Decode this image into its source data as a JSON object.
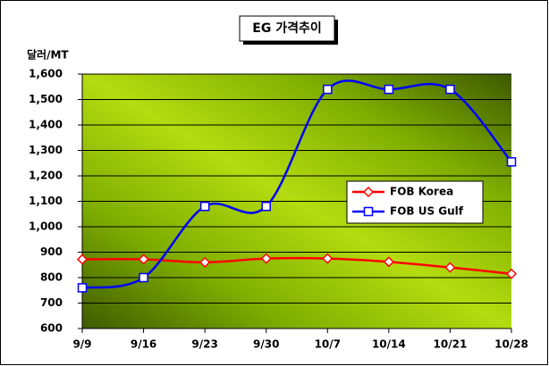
{
  "chart_data": {
    "type": "line",
    "title": "EG 가격추이",
    "y_label": "달러/MT",
    "categories": [
      "9/9",
      "9/16",
      "9/23",
      "9/30",
      "10/7",
      "10/14",
      "10/21",
      "10/28"
    ],
    "series": [
      {
        "name": "FOB Korea",
        "color": "#ff0000",
        "marker": "diamond",
        "values": [
          872,
          872,
          860,
          875,
          875,
          862,
          840,
          815
        ]
      },
      {
        "name": "FOB US Gulf",
        "color": "#0000ff",
        "marker": "square",
        "values": [
          760,
          800,
          1080,
          1080,
          1540,
          1540,
          1540,
          1255
        ]
      }
    ],
    "ylim": [
      600,
      1600
    ],
    "yticks": [
      600,
      700,
      800,
      900,
      {
        "value": 1000,
        "label": "1,000"
      },
      {
        "value": 1100,
        "label": "1,100"
      },
      {
        "value": 1200,
        "label": "1,200"
      },
      {
        "value": 1300,
        "label": "1,300"
      },
      {
        "value": 1400,
        "label": "1,400"
      },
      {
        "value": 1500,
        "label": "1,500"
      },
      {
        "value": 1600,
        "label": "1,600"
      }
    ],
    "grid": true
  }
}
